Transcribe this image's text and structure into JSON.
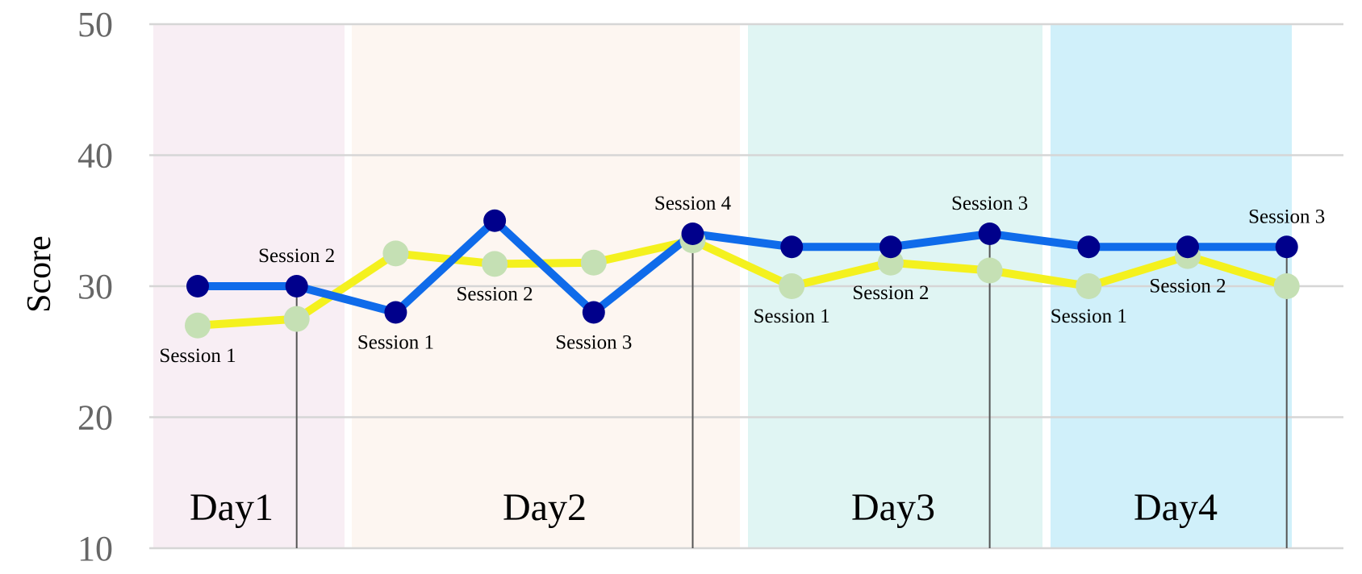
{
  "chart_data": {
    "type": "line",
    "title": "",
    "ylabel": "Score",
    "xlabel": "",
    "ylim": [
      10,
      50
    ],
    "yticks": [
      10,
      20,
      30,
      40,
      50
    ],
    "grid": true,
    "days": [
      {
        "label": "Day1",
        "color": "#f8eef4"
      },
      {
        "label": "Day2",
        "color": "#fdf6f1"
      },
      {
        "label": "Day3",
        "color": "#e0f5f3"
      },
      {
        "label": "Day4",
        "color": "#d0f0fa"
      }
    ],
    "points": [
      {
        "day": "Day1",
        "session": "Session 1"
      },
      {
        "day": "Day1",
        "session": "Session 2"
      },
      {
        "day": "Day2",
        "session": "Session 1"
      },
      {
        "day": "Day2",
        "session": "Session 2"
      },
      {
        "day": "Day2",
        "session": "Session 3"
      },
      {
        "day": "Day2",
        "session": "Session 4"
      },
      {
        "day": "Day3",
        "session": "Session 1"
      },
      {
        "day": "Day3",
        "session": "Session 2"
      },
      {
        "day": "Day3",
        "session": "Session 3"
      },
      {
        "day": "Day4",
        "session": "Session 1"
      },
      {
        "day": "Day4",
        "session": "Session 2"
      },
      {
        "day": "Day4",
        "session": "Session 3"
      }
    ],
    "series": [
      {
        "line_color": "#0f6bea",
        "marker_color": "#00008b",
        "values": [
          30,
          30,
          28,
          35,
          28,
          34,
          33,
          33,
          34,
          33,
          33,
          33
        ]
      },
      {
        "line_color": "#f4f11e",
        "marker_color": "#c5e0b4",
        "values": [
          27,
          27.5,
          32.5,
          31.7,
          31.8,
          33.5,
          30,
          31.8,
          31.2,
          30,
          32.3,
          30
        ]
      }
    ],
    "session_labels": [
      {
        "text": "Session 1",
        "point": 0,
        "position": "below"
      },
      {
        "text": "Session 2",
        "point": 1,
        "position": "above"
      },
      {
        "text": "Session 1",
        "point": 2,
        "position": "below"
      },
      {
        "text": "Session 2",
        "point": 3,
        "position": "below"
      },
      {
        "text": "Session 3",
        "point": 4,
        "position": "below"
      },
      {
        "text": "Session 4",
        "point": 5,
        "position": "above"
      },
      {
        "text": "Session 1",
        "point": 6,
        "position": "below"
      },
      {
        "text": "Session 2",
        "point": 7,
        "position": "below"
      },
      {
        "text": "Session 3",
        "point": 8,
        "position": "above"
      },
      {
        "text": "Session 1",
        "point": 9,
        "position": "below"
      },
      {
        "text": "Session 2",
        "point": 10,
        "position": "below"
      },
      {
        "text": "Session 3",
        "point": 11,
        "position": "above"
      }
    ],
    "day_end_points": [
      1,
      5,
      8,
      11
    ]
  }
}
